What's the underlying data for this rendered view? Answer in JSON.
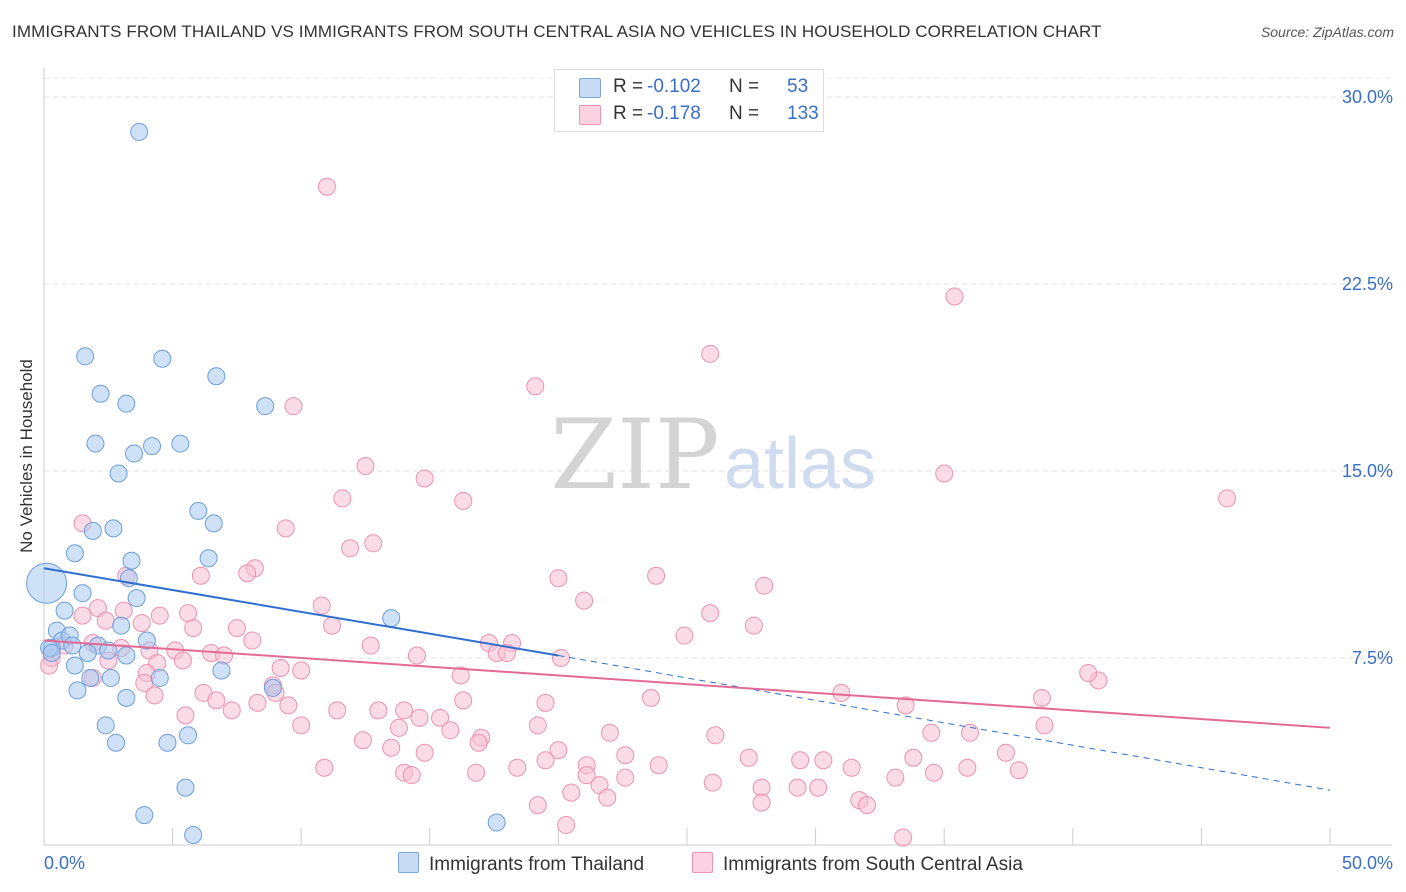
{
  "title": "IMMIGRANTS FROM THAILAND VS IMMIGRANTS FROM SOUTH CENTRAL ASIA NO VEHICLES IN HOUSEHOLD CORRELATION CHART",
  "source": "Source: ZipAtlas.com",
  "watermark": {
    "zip": "ZIP",
    "atlas": "atlas"
  },
  "legend": {
    "r_label": "R =",
    "n_label": "N =",
    "rows": [
      {
        "r": "-0.102",
        "n": "53",
        "color": "#a8c8f0",
        "border": "#7aa6dc"
      },
      {
        "r": "-0.178",
        "n": "133",
        "color": "#f8c0d2",
        "border": "#ee93b2"
      }
    ]
  },
  "bottom_legend": [
    "Immigrants from Thailand",
    "Immigrants from South Central Asia"
  ],
  "chart_data": {
    "type": "scatter",
    "title": "IMMIGRANTS FROM THAILAND VS IMMIGRANTS FROM SOUTH CENTRAL ASIA NO VEHICLES IN HOUSEHOLD CORRELATION CHART",
    "xlabel": "",
    "ylabel": "No Vehicles in Household",
    "x_ticks": [
      "0.0%",
      "50.0%"
    ],
    "y_ticks": [
      "7.5%",
      "15.0%",
      "22.5%",
      "30.0%"
    ],
    "xlim": [
      0,
      50
    ],
    "ylim": [
      0,
      30
    ],
    "grid": true,
    "legend_position": "top-center",
    "series": [
      {
        "name": "Immigrants from Thailand",
        "color": "#a8c8f0",
        "stroke": "#6d9fd9",
        "trend": {
          "x": [
            0,
            20
          ],
          "y": [
            11.1,
            7.6
          ],
          "color": "#2f6fd0",
          "dash_extend_to_x": 50,
          "dash_end_y": 2.2
        },
        "points": [
          [
            3.7,
            28.6
          ],
          [
            4.6,
            19.5
          ],
          [
            1.6,
            19.6
          ],
          [
            6.7,
            18.8
          ],
          [
            2.2,
            18.1
          ],
          [
            3.2,
            17.7
          ],
          [
            8.6,
            17.6
          ],
          [
            2.0,
            16.1
          ],
          [
            4.2,
            16.0
          ],
          [
            5.3,
            16.1
          ],
          [
            3.5,
            15.7
          ],
          [
            2.9,
            14.9
          ],
          [
            6.0,
            13.4
          ],
          [
            2.7,
            12.7
          ],
          [
            1.9,
            12.6
          ],
          [
            6.6,
            12.9
          ],
          [
            1.2,
            11.7
          ],
          [
            3.4,
            11.4
          ],
          [
            6.4,
            11.5
          ],
          [
            3.3,
            10.7
          ],
          [
            1.5,
            10.1
          ],
          [
            3.6,
            9.9
          ],
          [
            0.8,
            9.4
          ],
          [
            13.5,
            9.1
          ],
          [
            3.0,
            8.8
          ],
          [
            0.5,
            8.6
          ],
          [
            0.7,
            8.2
          ],
          [
            1.0,
            8.4
          ],
          [
            1.1,
            8.0
          ],
          [
            2.1,
            8.0
          ],
          [
            1.7,
            7.7
          ],
          [
            0.3,
            7.9
          ],
          [
            0.2,
            7.9
          ],
          [
            0.3,
            7.7
          ],
          [
            3.2,
            7.6
          ],
          [
            4.0,
            8.2
          ],
          [
            2.5,
            7.8
          ],
          [
            0.1,
            10.5
          ],
          [
            1.2,
            7.2
          ],
          [
            1.8,
            6.7
          ],
          [
            2.6,
            6.7
          ],
          [
            4.5,
            6.7
          ],
          [
            6.9,
            7.0
          ],
          [
            8.9,
            6.3
          ],
          [
            1.3,
            6.2
          ],
          [
            3.2,
            5.9
          ],
          [
            2.4,
            4.8
          ],
          [
            5.6,
            4.4
          ],
          [
            2.8,
            4.1
          ],
          [
            4.8,
            4.1
          ],
          [
            5.5,
            2.3
          ],
          [
            3.9,
            1.2
          ],
          [
            5.8,
            0.4
          ],
          [
            17.6,
            0.9
          ]
        ]
      },
      {
        "name": "Immigrants from South Central Asia",
        "color": "#f8c0d2",
        "stroke": "#ec92b0",
        "trend": {
          "x": [
            0,
            50
          ],
          "y": [
            8.2,
            4.7
          ],
          "color": "#e36a95"
        },
        "points": [
          [
            11.0,
            26.4
          ],
          [
            35.4,
            22.0
          ],
          [
            25.9,
            19.7
          ],
          [
            9.7,
            17.6
          ],
          [
            19.1,
            18.4
          ],
          [
            12.5,
            15.2
          ],
          [
            14.8,
            14.7
          ],
          [
            35.0,
            14.9
          ],
          [
            11.6,
            13.9
          ],
          [
            16.3,
            13.8
          ],
          [
            46.0,
            13.9
          ],
          [
            1.5,
            12.9
          ],
          [
            9.4,
            12.7
          ],
          [
            12.8,
            12.1
          ],
          [
            11.9,
            11.9
          ],
          [
            8.2,
            11.1
          ],
          [
            7.9,
            10.9
          ],
          [
            6.1,
            10.8
          ],
          [
            20.0,
            10.7
          ],
          [
            23.8,
            10.8
          ],
          [
            28.0,
            10.4
          ],
          [
            3.2,
            10.8
          ],
          [
            21.0,
            9.8
          ],
          [
            10.8,
            9.6
          ],
          [
            2.1,
            9.5
          ],
          [
            3.1,
            9.4
          ],
          [
            4.5,
            9.2
          ],
          [
            5.6,
            9.3
          ],
          [
            25.9,
            9.3
          ],
          [
            1.5,
            9.2
          ],
          [
            2.4,
            9.0
          ],
          [
            3.8,
            8.9
          ],
          [
            11.2,
            8.8
          ],
          [
            27.6,
            8.8
          ],
          [
            5.8,
            8.7
          ],
          [
            7.5,
            8.7
          ],
          [
            24.9,
            8.4
          ],
          [
            8.1,
            8.2
          ],
          [
            12.7,
            8.0
          ],
          [
            17.3,
            8.1
          ],
          [
            18.2,
            8.1
          ],
          [
            0.8,
            8.0
          ],
          [
            1.9,
            8.1
          ],
          [
            3.0,
            7.9
          ],
          [
            4.1,
            7.8
          ],
          [
            5.1,
            7.8
          ],
          [
            6.5,
            7.7
          ],
          [
            7.0,
            7.6
          ],
          [
            14.5,
            7.6
          ],
          [
            17.6,
            7.7
          ],
          [
            18.0,
            7.7
          ],
          [
            0.3,
            7.5
          ],
          [
            2.5,
            7.4
          ],
          [
            4.4,
            7.3
          ],
          [
            5.4,
            7.4
          ],
          [
            20.1,
            7.5
          ],
          [
            0.2,
            7.2
          ],
          [
            9.2,
            7.1
          ],
          [
            10.0,
            7.0
          ],
          [
            4.0,
            6.9
          ],
          [
            16.2,
            6.8
          ],
          [
            1.9,
            6.7
          ],
          [
            8.9,
            6.4
          ],
          [
            3.9,
            6.5
          ],
          [
            41.0,
            6.6
          ],
          [
            38.8,
            5.9
          ],
          [
            40.6,
            6.9
          ],
          [
            6.2,
            6.1
          ],
          [
            9.0,
            6.1
          ],
          [
            4.3,
            6.0
          ],
          [
            6.7,
            5.8
          ],
          [
            9.5,
            5.6
          ],
          [
            14.0,
            5.4
          ],
          [
            16.3,
            5.8
          ],
          [
            19.5,
            5.7
          ],
          [
            23.6,
            5.9
          ],
          [
            31.0,
            6.1
          ],
          [
            33.5,
            5.6
          ],
          [
            8.3,
            5.7
          ],
          [
            11.4,
            5.4
          ],
          [
            13.0,
            5.4
          ],
          [
            7.3,
            5.4
          ],
          [
            14.6,
            5.1
          ],
          [
            15.4,
            5.1
          ],
          [
            5.5,
            5.2
          ],
          [
            10.0,
            4.8
          ],
          [
            13.8,
            4.7
          ],
          [
            15.8,
            4.6
          ],
          [
            19.2,
            4.8
          ],
          [
            22.0,
            4.5
          ],
          [
            26.1,
            4.4
          ],
          [
            34.5,
            4.5
          ],
          [
            36.0,
            4.5
          ],
          [
            38.9,
            4.8
          ],
          [
            17.0,
            4.3
          ],
          [
            12.4,
            4.2
          ],
          [
            16.9,
            4.1
          ],
          [
            13.5,
            3.9
          ],
          [
            14.8,
            3.7
          ],
          [
            20.0,
            3.8
          ],
          [
            22.6,
            3.6
          ],
          [
            27.4,
            3.5
          ],
          [
            29.4,
            3.4
          ],
          [
            30.3,
            3.4
          ],
          [
            33.8,
            3.5
          ],
          [
            37.4,
            3.7
          ],
          [
            19.5,
            3.4
          ],
          [
            21.1,
            3.2
          ],
          [
            23.9,
            3.2
          ],
          [
            31.4,
            3.1
          ],
          [
            35.9,
            3.1
          ],
          [
            37.9,
            3.0
          ],
          [
            10.9,
            3.1
          ],
          [
            14.0,
            2.9
          ],
          [
            16.8,
            2.9
          ],
          [
            18.4,
            3.1
          ],
          [
            14.3,
            2.8
          ],
          [
            22.6,
            2.7
          ],
          [
            26.0,
            2.5
          ],
          [
            27.9,
            2.3
          ],
          [
            29.3,
            2.3
          ],
          [
            30.1,
            2.3
          ],
          [
            31.7,
            1.8
          ],
          [
            32.0,
            1.6
          ],
          [
            33.1,
            2.7
          ],
          [
            34.6,
            2.9
          ],
          [
            21.1,
            2.8
          ],
          [
            21.6,
            2.4
          ],
          [
            20.5,
            2.1
          ],
          [
            21.9,
            1.9
          ],
          [
            27.9,
            1.7
          ],
          [
            19.2,
            1.6
          ],
          [
            20.3,
            0.8
          ],
          [
            33.4,
            0.3
          ]
        ]
      }
    ]
  }
}
